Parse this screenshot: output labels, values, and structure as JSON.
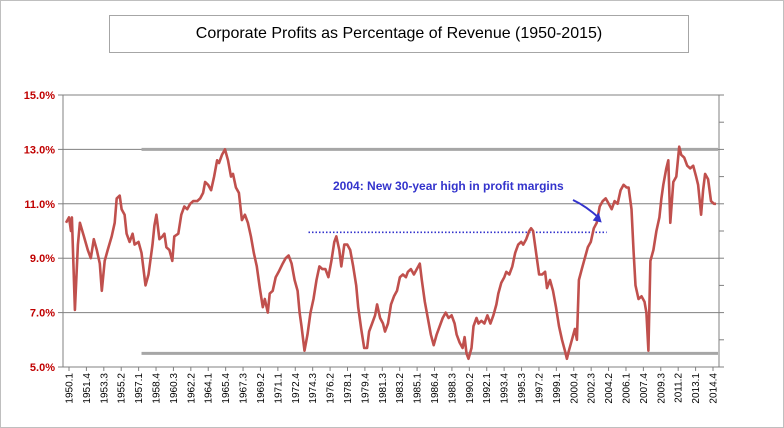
{
  "chart_data": {
    "type": "line",
    "title": "Corporate Profits as Percentage of Revenue (1950-2015)",
    "xlabel": "",
    "ylabel": "",
    "ylim": [
      5.0,
      15.0
    ],
    "y_ticks": [
      "15.0%",
      "13.0%",
      "11.0%",
      "9.0%",
      "7.0%",
      "5.0%"
    ],
    "y_tick_values": [
      15,
      13,
      11,
      9,
      7,
      5
    ],
    "x_tick_labels": [
      "1950.1",
      "1951.4",
      "1953.3",
      "1955.2",
      "1957.1",
      "1958.4",
      "1960.3",
      "1962.2",
      "1964.1",
      "1965.4",
      "1967.3",
      "1969.2",
      "1971.1",
      "1972.4",
      "1974.3",
      "1976.2",
      "1978.1",
      "1979.4",
      "1981.3",
      "1983.2",
      "1985.1",
      "1986.4",
      "1988.3",
      "1990.2",
      "1992.1",
      "1993.4",
      "1995.3",
      "1997.2",
      "1999.1",
      "2000.4",
      "2002.3",
      "2004.2",
      "2006.1",
      "2007.4",
      "2009.3",
      "2011.2",
      "2013.1",
      "2014.4"
    ],
    "grid": "horizontal",
    "legend": "none",
    "series_color": "#c0504d",
    "series": [
      {
        "values": [
          [
            1950.0,
            10.3
          ],
          [
            1950.3,
            10.5
          ],
          [
            1950.5,
            10.0
          ],
          [
            1950.6,
            10.5
          ],
          [
            1950.9,
            7.1
          ],
          [
            1951.2,
            9.5
          ],
          [
            1951.4,
            10.3
          ],
          [
            1951.8,
            9.8
          ],
          [
            1952.2,
            9.3
          ],
          [
            1952.5,
            9.0
          ],
          [
            1952.8,
            9.7
          ],
          [
            1953.1,
            9.3
          ],
          [
            1953.4,
            8.8
          ],
          [
            1953.6,
            7.8
          ],
          [
            1953.9,
            8.9
          ],
          [
            1954.2,
            9.3
          ],
          [
            1954.6,
            9.8
          ],
          [
            1954.9,
            10.3
          ],
          [
            1955.1,
            11.2
          ],
          [
            1955.4,
            11.3
          ],
          [
            1955.6,
            10.8
          ],
          [
            1955.9,
            10.6
          ],
          [
            1956.1,
            9.9
          ],
          [
            1956.4,
            9.6
          ],
          [
            1956.7,
            9.9
          ],
          [
            1956.9,
            9.5
          ],
          [
            1957.3,
            9.6
          ],
          [
            1957.6,
            9.2
          ],
          [
            1958.0,
            8.0
          ],
          [
            1958.3,
            8.4
          ],
          [
            1958.7,
            9.5
          ],
          [
            1958.9,
            10.2
          ],
          [
            1959.1,
            10.6
          ],
          [
            1959.4,
            9.7
          ],
          [
            1959.7,
            9.8
          ],
          [
            1959.9,
            9.9
          ],
          [
            1960.1,
            9.4
          ],
          [
            1960.4,
            9.3
          ],
          [
            1960.7,
            8.9
          ],
          [
            1960.9,
            9.8
          ],
          [
            1961.3,
            9.9
          ],
          [
            1961.6,
            10.6
          ],
          [
            1961.9,
            10.9
          ],
          [
            1962.2,
            10.8
          ],
          [
            1962.5,
            11.0
          ],
          [
            1962.8,
            11.1
          ],
          [
            1963.2,
            11.1
          ],
          [
            1963.5,
            11.2
          ],
          [
            1963.8,
            11.4
          ],
          [
            1964.0,
            11.8
          ],
          [
            1964.3,
            11.7
          ],
          [
            1964.6,
            11.5
          ],
          [
            1964.9,
            12.0
          ],
          [
            1965.2,
            12.6
          ],
          [
            1965.4,
            12.5
          ],
          [
            1965.7,
            12.8
          ],
          [
            1966.0,
            13.0
          ],
          [
            1966.3,
            12.6
          ],
          [
            1966.6,
            12.0
          ],
          [
            1966.8,
            12.1
          ],
          [
            1967.1,
            11.6
          ],
          [
            1967.4,
            11.4
          ],
          [
            1967.7,
            10.4
          ],
          [
            1968.0,
            10.6
          ],
          [
            1968.3,
            10.3
          ],
          [
            1968.6,
            9.8
          ],
          [
            1968.9,
            9.2
          ],
          [
            1969.2,
            8.7
          ],
          [
            1969.5,
            7.9
          ],
          [
            1969.8,
            7.2
          ],
          [
            1970.0,
            7.5
          ],
          [
            1970.3,
            7.0
          ],
          [
            1970.5,
            7.7
          ],
          [
            1970.8,
            7.8
          ],
          [
            1971.1,
            8.3
          ],
          [
            1971.4,
            8.5
          ],
          [
            1971.8,
            8.8
          ],
          [
            1972.1,
            9.0
          ],
          [
            1972.4,
            9.1
          ],
          [
            1972.7,
            8.8
          ],
          [
            1973.0,
            8.2
          ],
          [
            1973.3,
            7.8
          ],
          [
            1973.5,
            7.0
          ],
          [
            1973.7,
            6.5
          ],
          [
            1974.0,
            5.6
          ],
          [
            1974.3,
            6.2
          ],
          [
            1974.6,
            7.0
          ],
          [
            1974.9,
            7.5
          ],
          [
            1975.2,
            8.2
          ],
          [
            1975.5,
            8.7
          ],
          [
            1975.8,
            8.6
          ],
          [
            1976.1,
            8.6
          ],
          [
            1976.4,
            8.3
          ],
          [
            1976.7,
            8.9
          ],
          [
            1977.0,
            9.6
          ],
          [
            1977.2,
            9.8
          ],
          [
            1977.5,
            9.3
          ],
          [
            1977.7,
            8.7
          ],
          [
            1978.0,
            9.5
          ],
          [
            1978.3,
            9.5
          ],
          [
            1978.6,
            9.3
          ],
          [
            1978.9,
            8.7
          ],
          [
            1979.2,
            8.0
          ],
          [
            1979.4,
            7.2
          ],
          [
            1979.7,
            6.4
          ],
          [
            1980.0,
            5.7
          ],
          [
            1980.3,
            5.7
          ],
          [
            1980.5,
            6.3
          ],
          [
            1980.8,
            6.6
          ],
          [
            1981.1,
            6.9
          ],
          [
            1981.3,
            7.3
          ],
          [
            1981.6,
            6.8
          ],
          [
            1981.9,
            6.6
          ],
          [
            1982.1,
            6.3
          ],
          [
            1982.4,
            6.6
          ],
          [
            1982.7,
            7.3
          ],
          [
            1983.0,
            7.6
          ],
          [
            1983.3,
            7.8
          ],
          [
            1983.6,
            8.3
          ],
          [
            1983.9,
            8.4
          ],
          [
            1984.2,
            8.3
          ],
          [
            1984.4,
            8.5
          ],
          [
            1984.7,
            8.6
          ],
          [
            1985.0,
            8.4
          ],
          [
            1985.3,
            8.6
          ],
          [
            1985.6,
            8.8
          ],
          [
            1985.8,
            8.2
          ],
          [
            1986.1,
            7.4
          ],
          [
            1986.4,
            6.8
          ],
          [
            1986.7,
            6.2
          ],
          [
            1987.0,
            5.8
          ],
          [
            1987.3,
            6.2
          ],
          [
            1987.6,
            6.5
          ],
          [
            1987.9,
            6.8
          ],
          [
            1988.2,
            7.0
          ],
          [
            1988.5,
            6.8
          ],
          [
            1988.8,
            6.9
          ],
          [
            1989.1,
            6.6
          ],
          [
            1989.3,
            6.2
          ],
          [
            1989.6,
            5.9
          ],
          [
            1989.9,
            5.7
          ],
          [
            1990.1,
            6.1
          ],
          [
            1990.3,
            5.5
          ],
          [
            1990.5,
            5.3
          ],
          [
            1990.8,
            5.7
          ],
          [
            1991.0,
            6.5
          ],
          [
            1991.3,
            6.8
          ],
          [
            1991.5,
            6.6
          ],
          [
            1991.8,
            6.7
          ],
          [
            1992.1,
            6.6
          ],
          [
            1992.4,
            6.9
          ],
          [
            1992.7,
            6.6
          ],
          [
            1993.0,
            6.9
          ],
          [
            1993.3,
            7.3
          ],
          [
            1993.5,
            7.7
          ],
          [
            1993.8,
            8.1
          ],
          [
            1994.1,
            8.3
          ],
          [
            1994.3,
            8.5
          ],
          [
            1994.6,
            8.4
          ],
          [
            1994.9,
            8.7
          ],
          [
            1995.2,
            9.2
          ],
          [
            1995.5,
            9.5
          ],
          [
            1995.8,
            9.6
          ],
          [
            1996.0,
            9.5
          ],
          [
            1996.3,
            9.7
          ],
          [
            1996.6,
            10.0
          ],
          [
            1996.8,
            10.1
          ],
          [
            1997.0,
            10.0
          ],
          [
            1997.3,
            9.2
          ],
          [
            1997.6,
            8.4
          ],
          [
            1997.9,
            8.4
          ],
          [
            1998.2,
            8.5
          ],
          [
            1998.4,
            7.9
          ],
          [
            1998.7,
            8.2
          ],
          [
            1999.0,
            7.8
          ],
          [
            1999.3,
            7.2
          ],
          [
            1999.6,
            6.5
          ],
          [
            1999.9,
            6.0
          ],
          [
            2000.2,
            5.6
          ],
          [
            2000.4,
            5.3
          ],
          [
            2000.6,
            5.6
          ],
          [
            2000.9,
            6.0
          ],
          [
            2001.2,
            6.4
          ],
          [
            2001.4,
            6.0
          ],
          [
            2001.6,
            8.2
          ],
          [
            2001.9,
            8.6
          ],
          [
            2002.2,
            9.0
          ],
          [
            2002.5,
            9.4
          ],
          [
            2002.8,
            9.6
          ],
          [
            2003.1,
            10.1
          ],
          [
            2003.4,
            10.3
          ],
          [
            2003.7,
            10.9
          ],
          [
            2004.0,
            11.1
          ],
          [
            2004.3,
            11.2
          ],
          [
            2004.6,
            11.0
          ],
          [
            2004.9,
            10.8
          ],
          [
            2005.2,
            11.1
          ],
          [
            2005.5,
            11.0
          ],
          [
            2005.8,
            11.5
          ],
          [
            2006.1,
            11.7
          ],
          [
            2006.4,
            11.6
          ],
          [
            2006.6,
            11.6
          ],
          [
            2006.9,
            10.8
          ],
          [
            2007.1,
            9.3
          ],
          [
            2007.3,
            8.0
          ],
          [
            2007.6,
            7.5
          ],
          [
            2007.9,
            7.6
          ],
          [
            2008.2,
            7.4
          ],
          [
            2008.4,
            7.0
          ],
          [
            2008.6,
            5.6
          ],
          [
            2008.8,
            8.9
          ],
          [
            2009.1,
            9.3
          ],
          [
            2009.4,
            10.0
          ],
          [
            2009.7,
            10.5
          ],
          [
            2009.9,
            11.2
          ],
          [
            2010.1,
            11.7
          ],
          [
            2010.4,
            12.3
          ],
          [
            2010.6,
            12.6
          ],
          [
            2010.8,
            10.3
          ],
          [
            2011.1,
            11.8
          ],
          [
            2011.4,
            12.0
          ],
          [
            2011.7,
            13.1
          ],
          [
            2011.9,
            12.8
          ],
          [
            2012.2,
            12.7
          ],
          [
            2012.5,
            12.4
          ],
          [
            2012.8,
            12.3
          ],
          [
            2013.1,
            12.4
          ],
          [
            2013.4,
            12.0
          ],
          [
            2013.6,
            11.7
          ],
          [
            2013.9,
            10.6
          ],
          [
            2014.1,
            11.5
          ],
          [
            2014.3,
            12.1
          ],
          [
            2014.6,
            11.9
          ],
          [
            2014.9,
            11.1
          ],
          [
            2015.2,
            11.0
          ],
          [
            2015.4,
            11.0
          ]
        ]
      }
    ],
    "reference_lines": [
      {
        "y": 13.0,
        "x_from": 1957.6,
        "x_to": 2015.6,
        "color": "#a6a6a6"
      },
      {
        "y": 5.5,
        "x_from": 1957.6,
        "x_to": 2015.6,
        "color": "#a6a6a6"
      },
      {
        "y": 9.95,
        "x_from": 1974.4,
        "x_to": 2004.4,
        "color": "#3333cc",
        "style": "dotted"
      }
    ],
    "annotations": [
      {
        "text": "2004:  New 30-year high in profit margins",
        "x": 2004.0,
        "y": 10.2,
        "color": "#3333cc"
      }
    ],
    "xlim": [
      1949.7,
      2015.7
    ]
  }
}
